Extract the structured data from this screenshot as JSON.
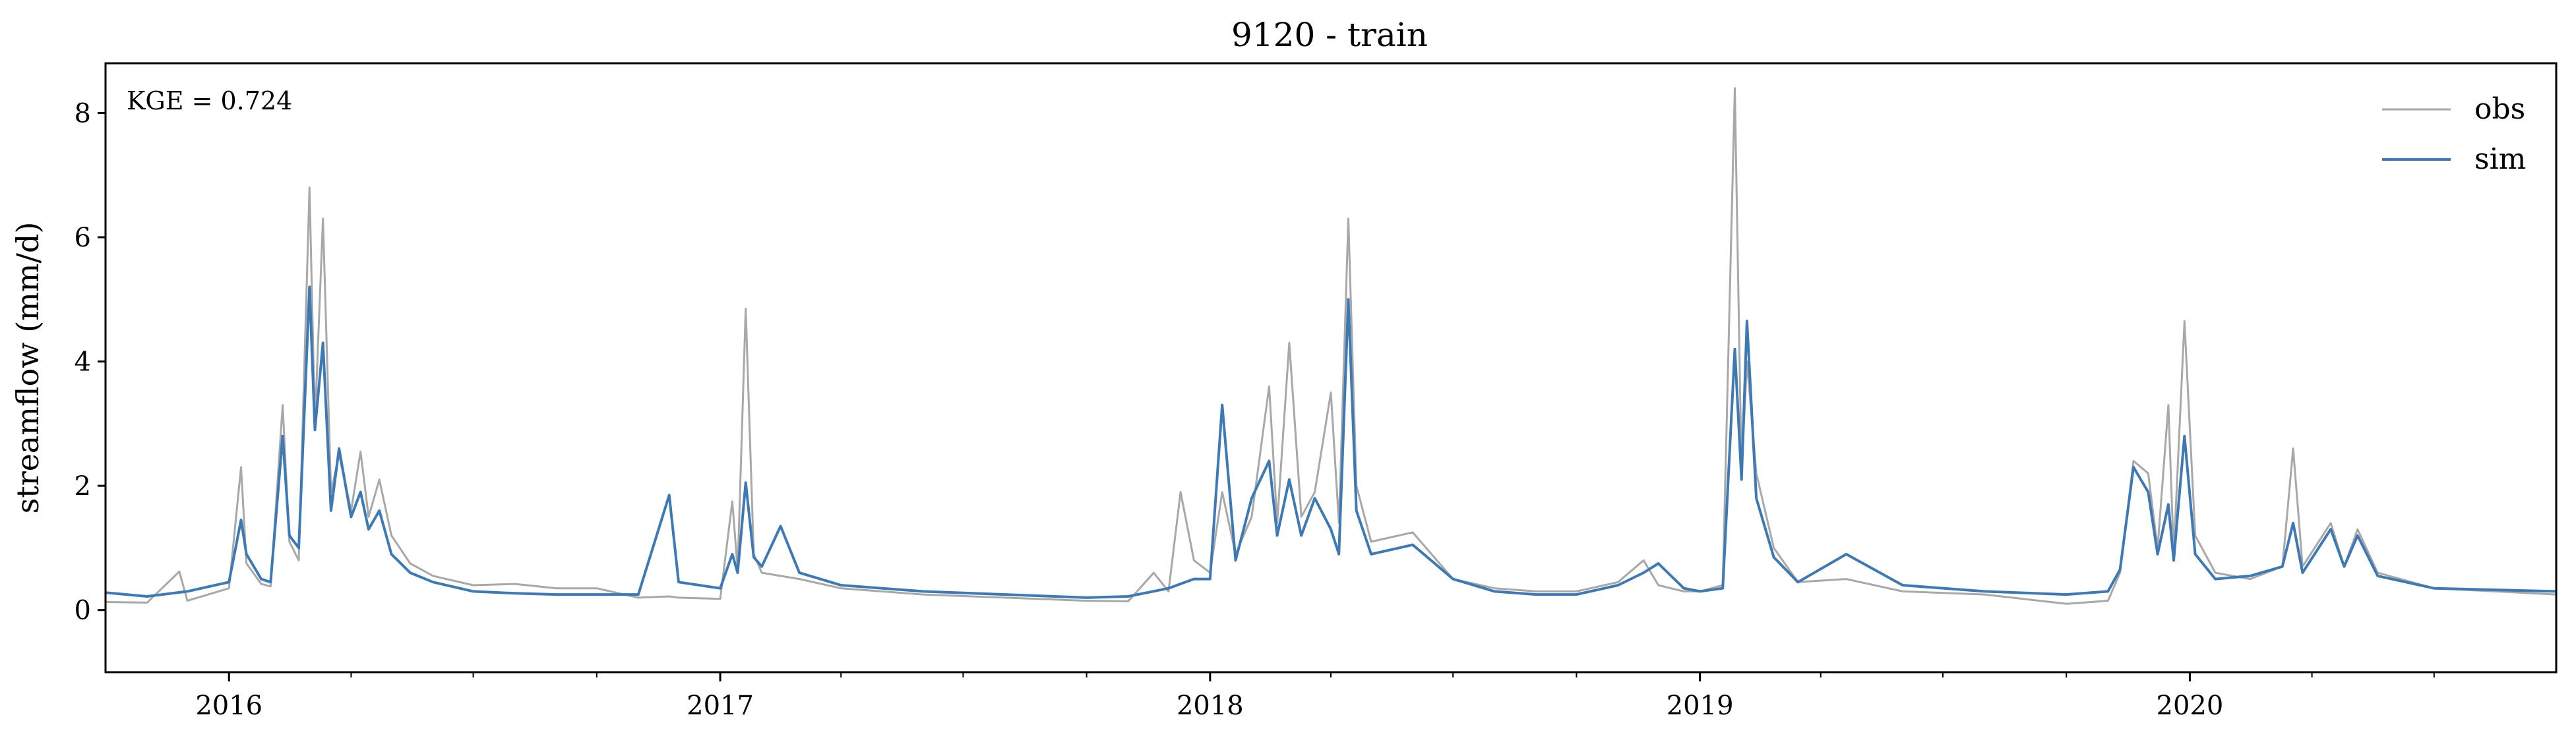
{
  "chart_data": {
    "type": "line",
    "title": "9120 - train",
    "xlabel": "",
    "ylabel": "streamflow (mm/d)",
    "annotation": "KGE = 0.724",
    "xlim": [
      "2015-10-01",
      "2020-09-30"
    ],
    "ylim": [
      -1,
      8.8
    ],
    "yticks": [
      0,
      2,
      4,
      6,
      8
    ],
    "xticks": [
      {
        "label": "2016",
        "date": "2016-01-01"
      },
      {
        "label": "2017",
        "date": "2017-01-01"
      },
      {
        "label": "2018",
        "date": "2018-01-01"
      },
      {
        "label": "2019",
        "date": "2019-01-01"
      },
      {
        "label": "2020",
        "date": "2020-01-01"
      }
    ],
    "grid": false,
    "legend_position": "top-right",
    "series": [
      {
        "name": "obs",
        "color": "#a8a8a8",
        "points": [
          [
            "2015-10-01",
            0.13
          ],
          [
            "2015-11-01",
            0.12
          ],
          [
            "2015-11-25",
            0.62
          ],
          [
            "2015-12-01",
            0.15
          ],
          [
            "2016-01-01",
            0.35
          ],
          [
            "2016-01-10",
            2.3
          ],
          [
            "2016-01-14",
            0.75
          ],
          [
            "2016-01-25",
            0.42
          ],
          [
            "2016-02-01",
            0.38
          ],
          [
            "2016-02-10",
            3.3
          ],
          [
            "2016-02-15",
            1.1
          ],
          [
            "2016-02-22",
            0.8
          ],
          [
            "2016-03-01",
            6.8
          ],
          [
            "2016-03-05",
            3.0
          ],
          [
            "2016-03-11",
            6.3
          ],
          [
            "2016-03-17",
            1.9
          ],
          [
            "2016-03-23",
            2.5
          ],
          [
            "2016-04-01",
            1.6
          ],
          [
            "2016-04-08",
            2.55
          ],
          [
            "2016-04-14",
            1.5
          ],
          [
            "2016-04-22",
            2.1
          ],
          [
            "2016-05-01",
            1.2
          ],
          [
            "2016-05-15",
            0.75
          ],
          [
            "2016-06-01",
            0.55
          ],
          [
            "2016-07-01",
            0.4
          ],
          [
            "2016-08-01",
            0.42
          ],
          [
            "2016-09-01",
            0.35
          ],
          [
            "2016-10-01",
            0.35
          ],
          [
            "2016-11-01",
            0.2
          ],
          [
            "2016-11-24",
            0.22
          ],
          [
            "2016-12-01",
            0.2
          ],
          [
            "2017-01-01",
            0.18
          ],
          [
            "2017-01-10",
            1.75
          ],
          [
            "2017-01-14",
            0.65
          ],
          [
            "2017-01-20",
            4.85
          ],
          [
            "2017-01-26",
            0.9
          ],
          [
            "2017-02-01",
            0.6
          ],
          [
            "2017-03-01",
            0.5
          ],
          [
            "2017-04-01",
            0.35
          ],
          [
            "2017-06-01",
            0.25
          ],
          [
            "2017-08-01",
            0.2
          ],
          [
            "2017-10-01",
            0.15
          ],
          [
            "2017-11-01",
            0.14
          ],
          [
            "2017-11-20",
            0.6
          ],
          [
            "2017-12-01",
            0.3
          ],
          [
            "2017-12-10",
            1.9
          ],
          [
            "2017-12-20",
            0.8
          ],
          [
            "2018-01-01",
            0.6
          ],
          [
            "2018-01-10",
            1.9
          ],
          [
            "2018-01-20",
            0.9
          ],
          [
            "2018-02-01",
            1.5
          ],
          [
            "2018-02-14",
            3.6
          ],
          [
            "2018-02-20",
            1.4
          ],
          [
            "2018-03-01",
            4.3
          ],
          [
            "2018-03-10",
            1.5
          ],
          [
            "2018-03-20",
            1.9
          ],
          [
            "2018-04-01",
            3.5
          ],
          [
            "2018-04-07",
            1.4
          ],
          [
            "2018-04-14",
            6.3
          ],
          [
            "2018-04-20",
            2.0
          ],
          [
            "2018-05-01",
            1.1
          ],
          [
            "2018-06-01",
            1.25
          ],
          [
            "2018-07-01",
            0.5
          ],
          [
            "2018-08-01",
            0.35
          ],
          [
            "2018-09-01",
            0.3
          ],
          [
            "2018-10-01",
            0.3
          ],
          [
            "2018-11-01",
            0.45
          ],
          [
            "2018-11-20",
            0.8
          ],
          [
            "2018-12-01",
            0.4
          ],
          [
            "2018-12-20",
            0.3
          ],
          [
            "2019-01-01",
            0.3
          ],
          [
            "2019-01-18",
            0.4
          ],
          [
            "2019-01-27",
            8.4
          ],
          [
            "2019-02-01",
            2.2
          ],
          [
            "2019-02-05",
            4.0
          ],
          [
            "2019-02-12",
            2.2
          ],
          [
            "2019-02-25",
            1.0
          ],
          [
            "2019-03-15",
            0.45
          ],
          [
            "2019-04-20",
            0.5
          ],
          [
            "2019-06-01",
            0.3
          ],
          [
            "2019-08-01",
            0.25
          ],
          [
            "2019-10-01",
            0.1
          ],
          [
            "2019-11-01",
            0.15
          ],
          [
            "2019-11-10",
            0.6
          ],
          [
            "2019-11-20",
            2.4
          ],
          [
            "2019-12-01",
            2.2
          ],
          [
            "2019-12-08",
            1.0
          ],
          [
            "2019-12-16",
            3.3
          ],
          [
            "2019-12-20",
            0.9
          ],
          [
            "2019-12-28",
            4.65
          ],
          [
            "2020-01-05",
            1.2
          ],
          [
            "2020-01-20",
            0.6
          ],
          [
            "2020-02-15",
            0.5
          ],
          [
            "2020-03-10",
            0.7
          ],
          [
            "2020-03-18",
            2.6
          ],
          [
            "2020-03-25",
            0.7
          ],
          [
            "2020-04-15",
            1.4
          ],
          [
            "2020-04-25",
            0.7
          ],
          [
            "2020-05-05",
            1.3
          ],
          [
            "2020-05-20",
            0.6
          ],
          [
            "2020-07-01",
            0.35
          ],
          [
            "2020-09-30",
            0.25
          ]
        ]
      },
      {
        "name": "sim",
        "color": "#3d7ab5",
        "points": [
          [
            "2015-10-01",
            0.28
          ],
          [
            "2015-11-01",
            0.22
          ],
          [
            "2015-12-01",
            0.3
          ],
          [
            "2016-01-01",
            0.45
          ],
          [
            "2016-01-10",
            1.45
          ],
          [
            "2016-01-14",
            0.9
          ],
          [
            "2016-01-25",
            0.5
          ],
          [
            "2016-02-01",
            0.45
          ],
          [
            "2016-02-10",
            2.8
          ],
          [
            "2016-02-15",
            1.2
          ],
          [
            "2016-02-22",
            1.0
          ],
          [
            "2016-03-01",
            5.2
          ],
          [
            "2016-03-05",
            2.9
          ],
          [
            "2016-03-11",
            4.3
          ],
          [
            "2016-03-17",
            1.6
          ],
          [
            "2016-03-23",
            2.6
          ],
          [
            "2016-04-01",
            1.5
          ],
          [
            "2016-04-08",
            1.9
          ],
          [
            "2016-04-14",
            1.3
          ],
          [
            "2016-04-22",
            1.6
          ],
          [
            "2016-05-01",
            0.9
          ],
          [
            "2016-05-15",
            0.6
          ],
          [
            "2016-06-01",
            0.45
          ],
          [
            "2016-07-01",
            0.3
          ],
          [
            "2016-08-01",
            0.27
          ],
          [
            "2016-09-01",
            0.25
          ],
          [
            "2016-10-01",
            0.25
          ],
          [
            "2016-11-01",
            0.25
          ],
          [
            "2016-11-24",
            1.85
          ],
          [
            "2016-12-01",
            0.45
          ],
          [
            "2017-01-01",
            0.35
          ],
          [
            "2017-01-10",
            0.9
          ],
          [
            "2017-01-14",
            0.6
          ],
          [
            "2017-01-20",
            2.05
          ],
          [
            "2017-01-26",
            0.85
          ],
          [
            "2017-02-01",
            0.7
          ],
          [
            "2017-02-15",
            1.35
          ],
          [
            "2017-03-01",
            0.6
          ],
          [
            "2017-04-01",
            0.4
          ],
          [
            "2017-06-01",
            0.3
          ],
          [
            "2017-08-01",
            0.25
          ],
          [
            "2017-10-01",
            0.2
          ],
          [
            "2017-11-01",
            0.22
          ],
          [
            "2017-12-01",
            0.35
          ],
          [
            "2017-12-20",
            0.5
          ],
          [
            "2018-01-01",
            0.5
          ],
          [
            "2018-01-10",
            3.3
          ],
          [
            "2018-01-20",
            0.8
          ],
          [
            "2018-02-01",
            1.8
          ],
          [
            "2018-02-14",
            2.4
          ],
          [
            "2018-02-20",
            1.2
          ],
          [
            "2018-03-01",
            2.1
          ],
          [
            "2018-03-10",
            1.2
          ],
          [
            "2018-03-20",
            1.8
          ],
          [
            "2018-04-01",
            1.3
          ],
          [
            "2018-04-07",
            0.9
          ],
          [
            "2018-04-14",
            5.0
          ],
          [
            "2018-04-20",
            1.6
          ],
          [
            "2018-05-01",
            0.9
          ],
          [
            "2018-06-01",
            1.05
          ],
          [
            "2018-07-01",
            0.5
          ],
          [
            "2018-08-01",
            0.3
          ],
          [
            "2018-09-01",
            0.25
          ],
          [
            "2018-10-01",
            0.25
          ],
          [
            "2018-11-01",
            0.4
          ],
          [
            "2018-11-20",
            0.6
          ],
          [
            "2018-12-01",
            0.75
          ],
          [
            "2018-12-20",
            0.35
          ],
          [
            "2019-01-01",
            0.3
          ],
          [
            "2019-01-18",
            0.35
          ],
          [
            "2019-01-27",
            4.2
          ],
          [
            "2019-02-01",
            2.1
          ],
          [
            "2019-02-05",
            4.65
          ],
          [
            "2019-02-12",
            1.8
          ],
          [
            "2019-02-25",
            0.85
          ],
          [
            "2019-03-15",
            0.45
          ],
          [
            "2019-04-20",
            0.9
          ],
          [
            "2019-06-01",
            0.4
          ],
          [
            "2019-08-01",
            0.3
          ],
          [
            "2019-10-01",
            0.25
          ],
          [
            "2019-11-01",
            0.3
          ],
          [
            "2019-11-10",
            0.65
          ],
          [
            "2019-11-20",
            2.3
          ],
          [
            "2019-12-01",
            1.9
          ],
          [
            "2019-12-08",
            0.9
          ],
          [
            "2019-12-16",
            1.7
          ],
          [
            "2019-12-20",
            0.8
          ],
          [
            "2019-12-28",
            2.8
          ],
          [
            "2020-01-05",
            0.9
          ],
          [
            "2020-01-20",
            0.5
          ],
          [
            "2020-02-15",
            0.55
          ],
          [
            "2020-03-10",
            0.7
          ],
          [
            "2020-03-18",
            1.4
          ],
          [
            "2020-03-25",
            0.6
          ],
          [
            "2020-04-15",
            1.3
          ],
          [
            "2020-04-25",
            0.7
          ],
          [
            "2020-05-05",
            1.2
          ],
          [
            "2020-05-20",
            0.55
          ],
          [
            "2020-07-01",
            0.35
          ],
          [
            "2020-09-30",
            0.3
          ]
        ]
      }
    ]
  }
}
